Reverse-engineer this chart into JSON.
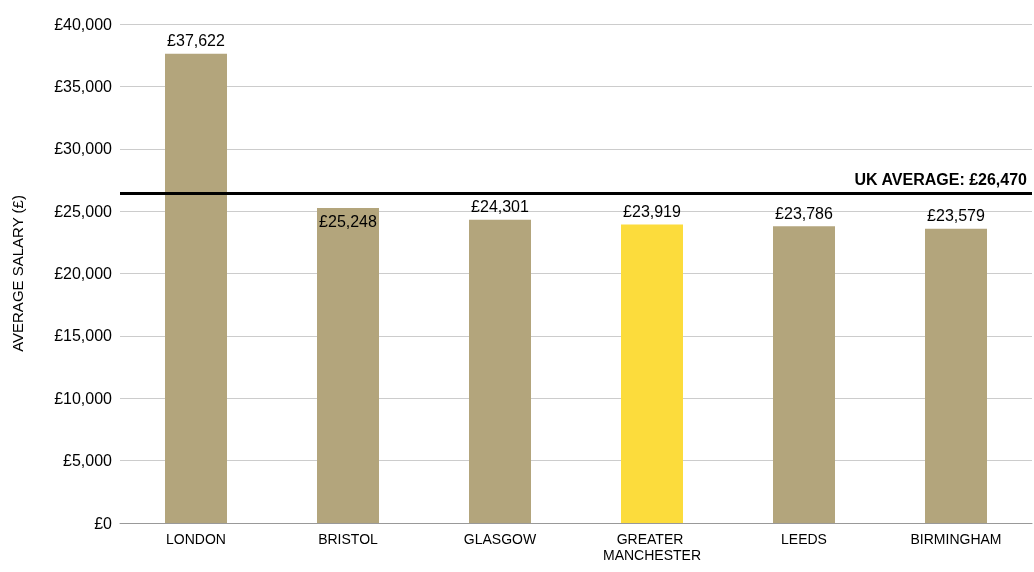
{
  "chart_data": {
    "type": "bar",
    "ylabel": "AVERAGE SALARY (£)",
    "categories": [
      "LONDON",
      "BRISTOL",
      "GLASGOW",
      "GREATER MANCHESTER",
      "LEEDS",
      "BIRMINGHAM"
    ],
    "values": [
      37622,
      25248,
      24301,
      23919,
      23786,
      23579
    ],
    "colors": [
      "#b3a57c",
      "#b3a57c",
      "#b3a57c",
      "#fcdc3c",
      "#b3a57c",
      "#b3a57c"
    ],
    "value_labels": [
      "£37,622",
      "£25,248",
      "£24,301",
      "£23,919",
      "£23,786",
      "£23,579"
    ],
    "ylim": [
      0,
      40000
    ],
    "yticks": [
      {
        "value": 0,
        "label": "£0"
      },
      {
        "value": 5000,
        "label": "£5,000"
      },
      {
        "value": 10000,
        "label": "£10,000"
      },
      {
        "value": 15000,
        "label": "£15,000"
      },
      {
        "value": 20000,
        "label": "£20,000"
      },
      {
        "value": 25000,
        "label": "£25,000"
      },
      {
        "value": 30000,
        "label": "£30,000"
      },
      {
        "value": 35000,
        "label": "£35,000"
      },
      {
        "value": 40000,
        "label": "£40,000"
      }
    ],
    "grid": "y",
    "ref_lines": [
      {
        "axis": "y",
        "value": 26470,
        "label": "UK AVERAGE: £26,470",
        "color": "#000000"
      }
    ]
  }
}
